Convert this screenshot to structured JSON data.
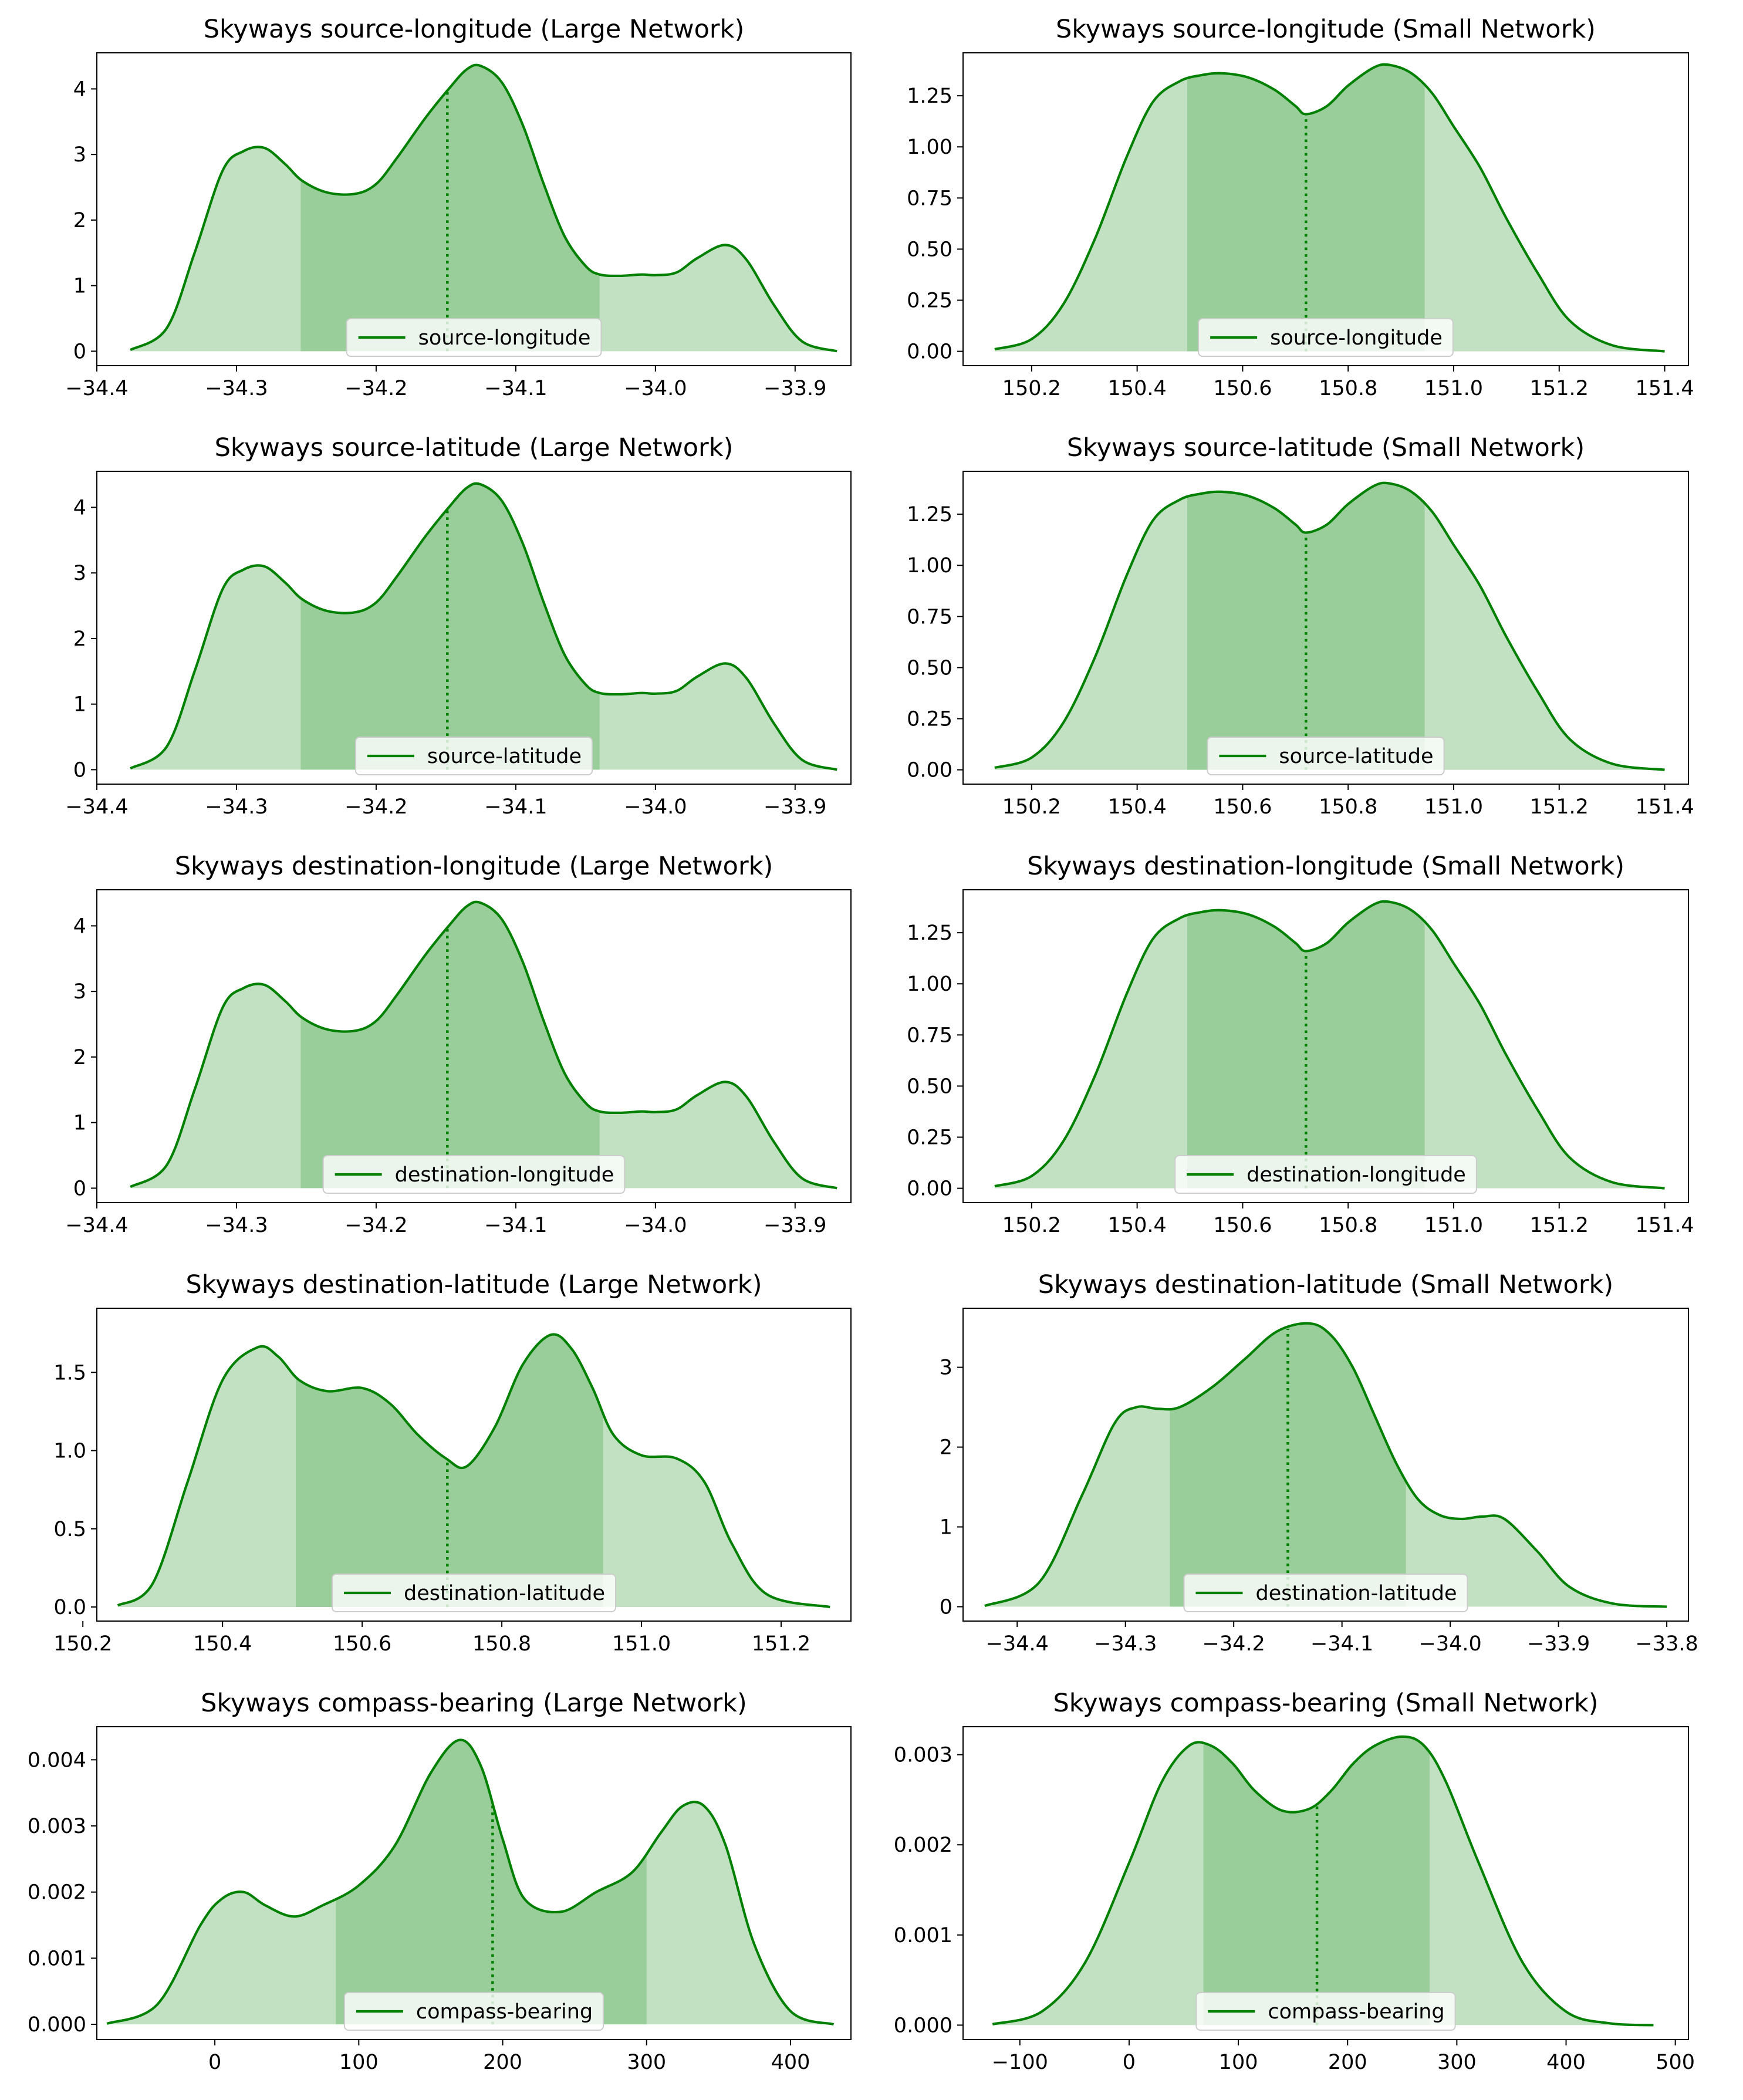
{
  "colors": {
    "line": "#008000",
    "band_outer": "#c2e1c2",
    "band_inner": "#99cd99",
    "legend_border": "#cccccc"
  },
  "chart_data": [
    {
      "type": "area",
      "title": "Skyways source-longitude (Large Network)",
      "legend": "source-longitude",
      "legend_position": "lower center",
      "xlim": [
        -34.4,
        -33.86
      ],
      "ylim": [
        -0.22,
        4.55
      ],
      "xticks": [
        -34.4,
        -34.3,
        -34.2,
        -34.1,
        -34.0,
        -33.9
      ],
      "xtick_labels": [
        "−34.4",
        "−34.3",
        "−34.2",
        "−34.1",
        "−34.0",
        "−33.9"
      ],
      "yticks": [
        0,
        1,
        2,
        3,
        4
      ],
      "ytick_labels": [
        "0",
        "1",
        "2",
        "3",
        "4"
      ],
      "x": [
        -34.376,
        -34.35,
        -34.33,
        -34.31,
        -34.295,
        -34.28,
        -34.265,
        -34.253,
        -34.235,
        -34.215,
        -34.2,
        -34.185,
        -34.165,
        -34.148,
        -34.135,
        -34.125,
        -34.11,
        -34.095,
        -34.08,
        -34.065,
        -34.05,
        -34.04,
        -34.025,
        -34.01,
        -34.0,
        -33.985,
        -33.97,
        -33.95,
        -33.935,
        -33.915,
        -33.895,
        -33.87
      ],
      "y": [
        0.02,
        0.35,
        1.5,
        2.75,
        3.05,
        3.1,
        2.85,
        2.6,
        2.42,
        2.4,
        2.55,
        2.95,
        3.55,
        4.0,
        4.3,
        4.35,
        4.1,
        3.45,
        2.55,
        1.75,
        1.3,
        1.17,
        1.15,
        1.17,
        1.16,
        1.2,
        1.42,
        1.62,
        1.4,
        0.7,
        0.15,
        0.0
      ],
      "inner_band": [
        -34.254,
        -34.04
      ],
      "median": -34.149
    },
    {
      "type": "area",
      "title": "Skyways source-longitude (Small Network)",
      "legend": "source-longitude",
      "legend_position": "lower center",
      "xlim": [
        150.07,
        151.445
      ],
      "ylim": [
        -0.07,
        1.46
      ],
      "xticks": [
        150.2,
        150.4,
        150.6,
        150.8,
        151.0,
        151.2,
        151.4
      ],
      "xtick_labels": [
        "150.2",
        "150.4",
        "150.6",
        "150.8",
        "151.0",
        "151.2",
        "151.4"
      ],
      "yticks": [
        0,
        0.25,
        0.5,
        0.75,
        1.0,
        1.25
      ],
      "ytick_labels": [
        "0.00",
        "0.25",
        "0.50",
        "0.75",
        "1.00",
        "1.25"
      ],
      "x": [
        150.13,
        150.2,
        150.26,
        150.32,
        150.38,
        150.43,
        150.48,
        150.52,
        150.56,
        150.61,
        150.66,
        150.7,
        150.72,
        150.76,
        150.8,
        150.85,
        150.88,
        150.92,
        150.96,
        151.0,
        151.05,
        151.1,
        151.16,
        151.22,
        151.3,
        151.4
      ],
      "y": [
        0.01,
        0.06,
        0.23,
        0.55,
        0.95,
        1.22,
        1.32,
        1.35,
        1.36,
        1.34,
        1.28,
        1.2,
        1.16,
        1.2,
        1.3,
        1.39,
        1.4,
        1.36,
        1.26,
        1.1,
        0.9,
        0.65,
        0.38,
        0.15,
        0.03,
        0.0
      ],
      "inner_band": [
        150.495,
        150.945
      ],
      "median": 150.72
    },
    {
      "type": "area",
      "title": "Skyways source-latitude (Large Network)",
      "legend": "source-latitude",
      "legend_position": "lower center",
      "xlim": [
        -34.4,
        -33.86
      ],
      "ylim": [
        -0.22,
        4.55
      ],
      "xticks": [
        -34.4,
        -34.3,
        -34.2,
        -34.1,
        -34.0,
        -33.9
      ],
      "xtick_labels": [
        "−34.4",
        "−34.3",
        "−34.2",
        "−34.1",
        "−34.0",
        "−33.9"
      ],
      "yticks": [
        0,
        1,
        2,
        3,
        4
      ],
      "ytick_labels": [
        "0",
        "1",
        "2",
        "3",
        "4"
      ],
      "x": [
        -34.376,
        -34.35,
        -34.33,
        -34.31,
        -34.295,
        -34.28,
        -34.265,
        -34.253,
        -34.235,
        -34.215,
        -34.2,
        -34.185,
        -34.165,
        -34.148,
        -34.135,
        -34.125,
        -34.11,
        -34.095,
        -34.08,
        -34.065,
        -34.05,
        -34.04,
        -34.025,
        -34.01,
        -34.0,
        -33.985,
        -33.97,
        -33.95,
        -33.935,
        -33.915,
        -33.895,
        -33.87
      ],
      "y": [
        0.02,
        0.35,
        1.5,
        2.75,
        3.05,
        3.1,
        2.85,
        2.6,
        2.42,
        2.4,
        2.55,
        2.95,
        3.55,
        4.0,
        4.3,
        4.35,
        4.1,
        3.45,
        2.55,
        1.75,
        1.3,
        1.17,
        1.15,
        1.17,
        1.16,
        1.2,
        1.42,
        1.62,
        1.4,
        0.7,
        0.15,
        0.0
      ],
      "inner_band": [
        -34.254,
        -34.04
      ],
      "median": -34.149
    },
    {
      "type": "area",
      "title": "Skyways source-latitude (Small Network)",
      "legend": "source-latitude",
      "legend_position": "lower center",
      "xlim": [
        150.07,
        151.445
      ],
      "ylim": [
        -0.07,
        1.46
      ],
      "xticks": [
        150.2,
        150.4,
        150.6,
        150.8,
        151.0,
        151.2,
        151.4
      ],
      "xtick_labels": [
        "150.2",
        "150.4",
        "150.6",
        "150.8",
        "151.0",
        "151.2",
        "151.4"
      ],
      "yticks": [
        0,
        0.25,
        0.5,
        0.75,
        1.0,
        1.25
      ],
      "ytick_labels": [
        "0.00",
        "0.25",
        "0.50",
        "0.75",
        "1.00",
        "1.25"
      ],
      "x": [
        150.13,
        150.2,
        150.26,
        150.32,
        150.38,
        150.43,
        150.48,
        150.52,
        150.56,
        150.61,
        150.66,
        150.7,
        150.72,
        150.76,
        150.8,
        150.85,
        150.88,
        150.92,
        150.96,
        151.0,
        151.05,
        151.1,
        151.16,
        151.22,
        151.3,
        151.4
      ],
      "y": [
        0.01,
        0.06,
        0.23,
        0.55,
        0.95,
        1.22,
        1.32,
        1.35,
        1.36,
        1.34,
        1.28,
        1.2,
        1.16,
        1.2,
        1.3,
        1.39,
        1.4,
        1.36,
        1.26,
        1.1,
        0.9,
        0.65,
        0.38,
        0.15,
        0.03,
        0.0
      ],
      "inner_band": [
        150.495,
        150.945
      ],
      "median": 150.72
    },
    {
      "type": "area",
      "title": "Skyways destination-longitude (Large Network)",
      "legend": "destination-longitude",
      "legend_position": "lower center",
      "xlim": [
        -34.4,
        -33.86
      ],
      "ylim": [
        -0.22,
        4.55
      ],
      "xticks": [
        -34.4,
        -34.3,
        -34.2,
        -34.1,
        -34.0,
        -33.9
      ],
      "xtick_labels": [
        "−34.4",
        "−34.3",
        "−34.2",
        "−34.1",
        "−34.0",
        "−33.9"
      ],
      "yticks": [
        0,
        1,
        2,
        3,
        4
      ],
      "ytick_labels": [
        "0",
        "1",
        "2",
        "3",
        "4"
      ],
      "x": [
        -34.376,
        -34.35,
        -34.33,
        -34.31,
        -34.295,
        -34.28,
        -34.265,
        -34.253,
        -34.235,
        -34.215,
        -34.2,
        -34.185,
        -34.165,
        -34.148,
        -34.135,
        -34.125,
        -34.11,
        -34.095,
        -34.08,
        -34.065,
        -34.05,
        -34.04,
        -34.025,
        -34.01,
        -34.0,
        -33.985,
        -33.97,
        -33.95,
        -33.935,
        -33.915,
        -33.895,
        -33.87
      ],
      "y": [
        0.02,
        0.35,
        1.5,
        2.75,
        3.05,
        3.1,
        2.85,
        2.6,
        2.42,
        2.4,
        2.55,
        2.95,
        3.55,
        4.0,
        4.3,
        4.35,
        4.1,
        3.45,
        2.55,
        1.75,
        1.3,
        1.17,
        1.15,
        1.17,
        1.16,
        1.2,
        1.42,
        1.62,
        1.4,
        0.7,
        0.15,
        0.0
      ],
      "inner_band": [
        -34.254,
        -34.04
      ],
      "median": -34.149
    },
    {
      "type": "area",
      "title": "Skyways destination-longitude (Small Network)",
      "legend": "destination-longitude",
      "legend_position": "lower center",
      "xlim": [
        150.07,
        151.445
      ],
      "ylim": [
        -0.07,
        1.46
      ],
      "xticks": [
        150.2,
        150.4,
        150.6,
        150.8,
        151.0,
        151.2,
        151.4
      ],
      "xtick_labels": [
        "150.2",
        "150.4",
        "150.6",
        "150.8",
        "151.0",
        "151.2",
        "151.4"
      ],
      "yticks": [
        0,
        0.25,
        0.5,
        0.75,
        1.0,
        1.25
      ],
      "ytick_labels": [
        "0.00",
        "0.25",
        "0.50",
        "0.75",
        "1.00",
        "1.25"
      ],
      "x": [
        150.13,
        150.2,
        150.26,
        150.32,
        150.38,
        150.43,
        150.48,
        150.52,
        150.56,
        150.61,
        150.66,
        150.7,
        150.72,
        150.76,
        150.8,
        150.85,
        150.88,
        150.92,
        150.96,
        151.0,
        151.05,
        151.1,
        151.16,
        151.22,
        151.3,
        151.4
      ],
      "y": [
        0.01,
        0.06,
        0.23,
        0.55,
        0.95,
        1.22,
        1.32,
        1.35,
        1.36,
        1.34,
        1.28,
        1.2,
        1.16,
        1.2,
        1.3,
        1.39,
        1.4,
        1.36,
        1.26,
        1.1,
        0.9,
        0.65,
        0.38,
        0.15,
        0.03,
        0.0
      ],
      "inner_band": [
        150.495,
        150.945
      ],
      "median": 150.72
    },
    {
      "type": "area",
      "title": "Skyways destination-latitude (Large Network)",
      "legend": "destination-latitude",
      "legend_position": "lower center",
      "xlim": [
        150.22,
        151.3
      ],
      "ylim": [
        -0.09,
        1.91
      ],
      "xticks": [
        150.2,
        150.4,
        150.6,
        150.8,
        151.0,
        151.2
      ],
      "xtick_labels": [
        "150.2",
        "150.4",
        "150.6",
        "150.8",
        "151.0",
        "151.2"
      ],
      "yticks": [
        0,
        0.5,
        1.0,
        1.5
      ],
      "ytick_labels": [
        "0.0",
        "0.5",
        "1.0",
        "1.5"
      ],
      "x": [
        150.25,
        150.3,
        150.35,
        150.4,
        150.45,
        150.48,
        150.51,
        150.55,
        150.6,
        150.64,
        150.68,
        150.72,
        150.75,
        150.79,
        150.83,
        150.87,
        150.9,
        150.93,
        150.96,
        151.0,
        151.05,
        151.09,
        151.13,
        151.18,
        151.27
      ],
      "y": [
        0.01,
        0.15,
        0.8,
        1.45,
        1.66,
        1.6,
        1.45,
        1.38,
        1.4,
        1.3,
        1.1,
        0.95,
        0.9,
        1.15,
        1.55,
        1.74,
        1.65,
        1.4,
        1.1,
        0.97,
        0.95,
        0.8,
        0.4,
        0.08,
        0.0
      ],
      "inner_band": [
        150.505,
        150.945
      ],
      "median": 150.722
    },
    {
      "type": "area",
      "title": "Skyways destination-latitude (Small Network)",
      "legend": "destination-latitude",
      "legend_position": "lower center",
      "xlim": [
        -34.45,
        -33.78
      ],
      "ylim": [
        -0.18,
        3.74
      ],
      "xticks": [
        -34.4,
        -34.3,
        -34.2,
        -34.1,
        -34.0,
        -33.9,
        -33.8
      ],
      "xtick_labels": [
        "−34.4",
        "−34.3",
        "−34.2",
        "−34.1",
        "−34.0",
        "−33.9",
        "−33.8"
      ],
      "yticks": [
        0,
        1,
        2,
        3
      ],
      "ytick_labels": [
        "0",
        "1",
        "2",
        "3"
      ],
      "x": [
        -34.43,
        -34.38,
        -34.34,
        -34.31,
        -34.29,
        -34.27,
        -34.25,
        -34.22,
        -34.19,
        -34.16,
        -34.13,
        -34.11,
        -34.09,
        -34.07,
        -34.05,
        -34.03,
        -34.01,
        -33.99,
        -33.97,
        -33.95,
        -33.92,
        -33.89,
        -33.85,
        -33.8
      ],
      "y": [
        0.01,
        0.3,
        1.4,
        2.3,
        2.5,
        2.48,
        2.5,
        2.75,
        3.1,
        3.45,
        3.55,
        3.4,
        3.0,
        2.4,
        1.8,
        1.35,
        1.15,
        1.1,
        1.13,
        1.1,
        0.7,
        0.25,
        0.04,
        0.0
      ],
      "inner_band": [
        -34.259,
        -34.041
      ],
      "median": -34.15
    },
    {
      "type": "area",
      "title": "Skyways compass-bearing (Large Network)",
      "legend": "compass-bearing",
      "legend_position": "lower center",
      "xlim": [
        -82,
        442
      ],
      "ylim": [
        -0.00023,
        0.0045
      ],
      "xticks": [
        0,
        100,
        200,
        300,
        400
      ],
      "xtick_labels": [
        "0",
        "100",
        "200",
        "300",
        "400"
      ],
      "yticks": [
        0,
        0.001,
        0.002,
        0.003,
        0.004
      ],
      "ytick_labels": [
        "0.000",
        "0.001",
        "0.002",
        "0.003",
        "0.004"
      ],
      "x": [
        -75,
        -40,
        -10,
        5,
        20,
        35,
        55,
        75,
        100,
        125,
        150,
        170,
        185,
        200,
        215,
        240,
        265,
        290,
        310,
        325,
        340,
        355,
        375,
        400,
        430
      ],
      "y": [
        1e-05,
        0.0003,
        0.0015,
        0.0019,
        0.002,
        0.0018,
        0.00163,
        0.0018,
        0.0021,
        0.0027,
        0.0038,
        0.0043,
        0.0039,
        0.0028,
        0.0019,
        0.0017,
        0.002,
        0.0023,
        0.0029,
        0.0033,
        0.0033,
        0.0027,
        0.0012,
        0.0002,
        0.0
      ],
      "inner_band": [
        84,
        300
      ],
      "median": 193
    },
    {
      "type": "area",
      "title": "Skyways compass-bearing (Small Network)",
      "legend": "compass-bearing",
      "legend_position": "lower center",
      "xlim": [
        -152,
        512
      ],
      "ylim": [
        -0.00016,
        0.00331
      ],
      "xticks": [
        -100,
        0,
        100,
        200,
        300,
        400,
        500
      ],
      "xtick_labels": [
        "−100",
        "0",
        "100",
        "200",
        "300",
        "400",
        "500"
      ],
      "yticks": [
        0,
        0.001,
        0.002,
        0.003
      ],
      "ytick_labels": [
        "0.000",
        "0.001",
        "0.002",
        "0.003"
      ],
      "x": [
        -125,
        -80,
        -40,
        0,
        30,
        55,
        75,
        95,
        115,
        140,
        165,
        185,
        205,
        225,
        250,
        270,
        290,
        320,
        360,
        400,
        440,
        480
      ],
      "y": [
        1e-05,
        0.00015,
        0.0007,
        0.0018,
        0.0027,
        0.0031,
        0.0031,
        0.0029,
        0.0026,
        0.00238,
        0.0024,
        0.0026,
        0.0029,
        0.0031,
        0.0032,
        0.0031,
        0.0027,
        0.0018,
        0.0007,
        0.00015,
        2e-05,
        0.0
      ],
      "inner_band": [
        68,
        275
      ],
      "median": 172
    }
  ]
}
